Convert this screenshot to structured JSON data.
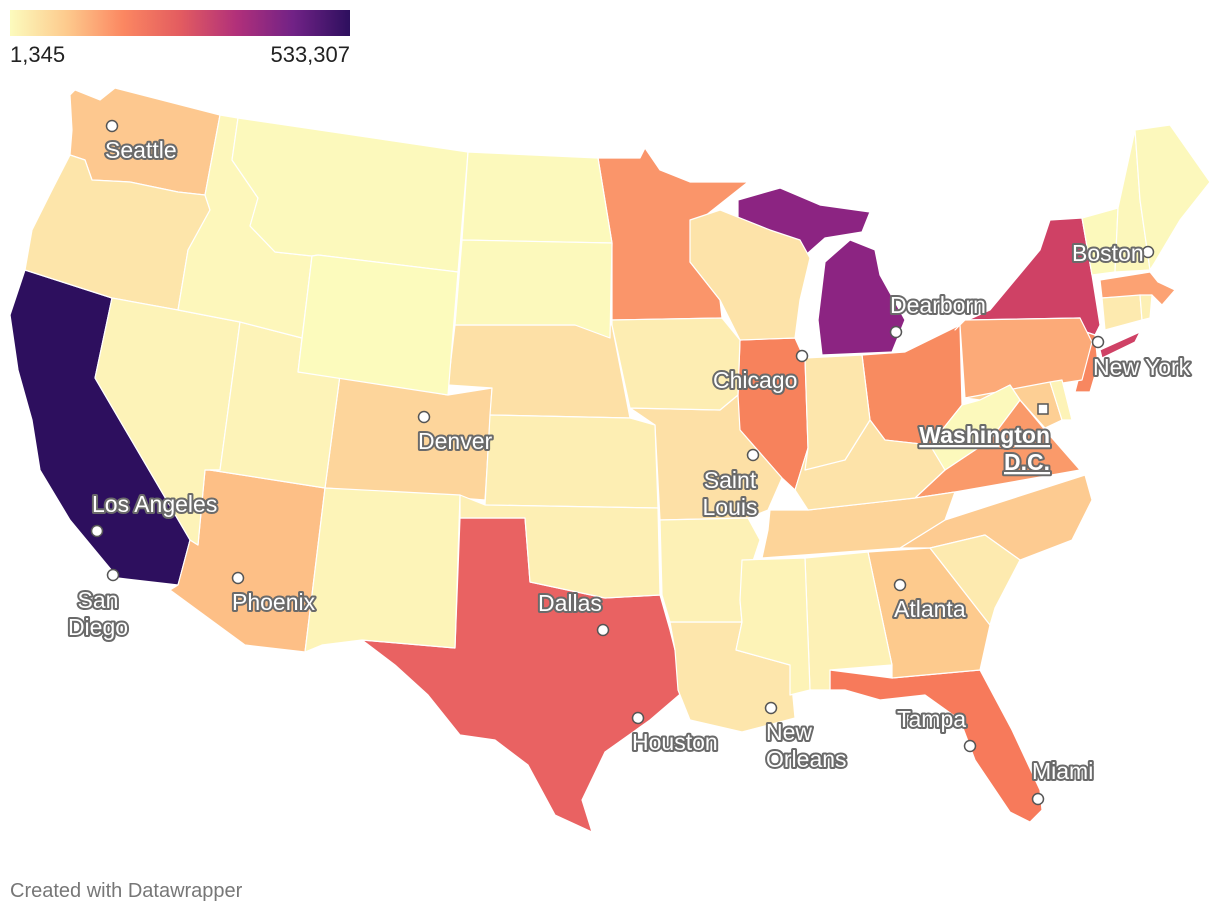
{
  "legend": {
    "min_label": "1,345",
    "max_label": "533,307",
    "gradient": [
      "#fcfbbd",
      "#fdca8d",
      "#fb8761",
      "#e35c60",
      "#b1307a",
      "#712286",
      "#2d0f5e"
    ]
  },
  "credit": "Created with Datawrapper",
  "chart_data": {
    "type": "choropleth",
    "scale": {
      "min": 1345,
      "max": 533307
    },
    "states": [
      {
        "name": "California",
        "color": "#2d0f5e"
      },
      {
        "name": "Michigan",
        "color": "#8c2482"
      },
      {
        "name": "New York",
        "color": "#cf4165"
      },
      {
        "name": "Texas",
        "color": "#e96262"
      },
      {
        "name": "Florida",
        "color": "#f77a5b"
      },
      {
        "name": "Illinois",
        "color": "#f7825c"
      },
      {
        "name": "Ohio",
        "color": "#f88b60"
      },
      {
        "name": "New Jersey",
        "color": "#f88760"
      },
      {
        "name": "Minnesota",
        "color": "#fa956a"
      },
      {
        "name": "Virginia",
        "color": "#fa9a6a"
      },
      {
        "name": "Massachusetts",
        "color": "#fca273"
      },
      {
        "name": "Pennsylvania",
        "color": "#fcaa78"
      },
      {
        "name": "Arizona",
        "color": "#fdbf86"
      },
      {
        "name": "Washington",
        "color": "#fdc88f"
      },
      {
        "name": "Georgia",
        "color": "#fdca8d"
      },
      {
        "name": "North Carolina",
        "color": "#fdcb91"
      },
      {
        "name": "Maryland",
        "color": "#fdcf94"
      },
      {
        "name": "Tennessee",
        "color": "#fdd499"
      },
      {
        "name": "Colorado",
        "color": "#fdd59b"
      },
      {
        "name": "Nebraska",
        "color": "#fde0a6"
      },
      {
        "name": "Missouri",
        "color": "#fde0a6"
      },
      {
        "name": "Wisconsin",
        "color": "#fde3a9"
      },
      {
        "name": "Kentucky",
        "color": "#fde3a9"
      },
      {
        "name": "Oregon",
        "color": "#fde5aa"
      },
      {
        "name": "Indiana",
        "color": "#fde6ac"
      },
      {
        "name": "Louisiana",
        "color": "#fde6ac"
      },
      {
        "name": "South Carolina",
        "color": "#fdeaaf"
      },
      {
        "name": "Connecticut",
        "color": "#fdeaaf"
      },
      {
        "name": "Iowa",
        "color": "#fdedb2"
      },
      {
        "name": "Kansas",
        "color": "#fdeeb3"
      },
      {
        "name": "Oklahoma",
        "color": "#fdefb4"
      },
      {
        "name": "Alabama",
        "color": "#fdf1b6"
      },
      {
        "name": "Arkansas",
        "color": "#fdf1b6"
      },
      {
        "name": "Mississippi",
        "color": "#fdf3b7"
      },
      {
        "name": "Nevada",
        "color": "#fdf3b8"
      },
      {
        "name": "Utah",
        "color": "#fdf3b8"
      },
      {
        "name": "New Mexico",
        "color": "#fdf4b8"
      },
      {
        "name": "Delaware",
        "color": "#fdf3b7"
      },
      {
        "name": "Idaho",
        "color": "#fdf7bb"
      },
      {
        "name": "Montana",
        "color": "#fcf9bc"
      },
      {
        "name": "North Dakota",
        "color": "#fcf9bc"
      },
      {
        "name": "South Dakota",
        "color": "#fcf9bc"
      },
      {
        "name": "Wyoming",
        "color": "#fcfbbd"
      },
      {
        "name": "West Virginia",
        "color": "#fcf9bc"
      },
      {
        "name": "Vermont",
        "color": "#fcf9bc"
      },
      {
        "name": "New Hampshire",
        "color": "#fcf7bb"
      },
      {
        "name": "Maine",
        "color": "#fcf8bc"
      },
      {
        "name": "Rhode Island",
        "color": "#fdf0b5"
      }
    ],
    "cities": [
      {
        "name": "Seattle"
      },
      {
        "name": "Los Angeles"
      },
      {
        "name": "San Diego"
      },
      {
        "name": "Phoenix"
      },
      {
        "name": "Denver"
      },
      {
        "name": "Dallas"
      },
      {
        "name": "Houston"
      },
      {
        "name": "New Orleans"
      },
      {
        "name": "Saint Louis"
      },
      {
        "name": "Chicago"
      },
      {
        "name": "Dearborn"
      },
      {
        "name": "Atlanta"
      },
      {
        "name": "Tampa"
      },
      {
        "name": "Miami"
      },
      {
        "name": "Washington D.C.",
        "capital": true
      },
      {
        "name": "New York"
      },
      {
        "name": "Boston"
      }
    ]
  }
}
